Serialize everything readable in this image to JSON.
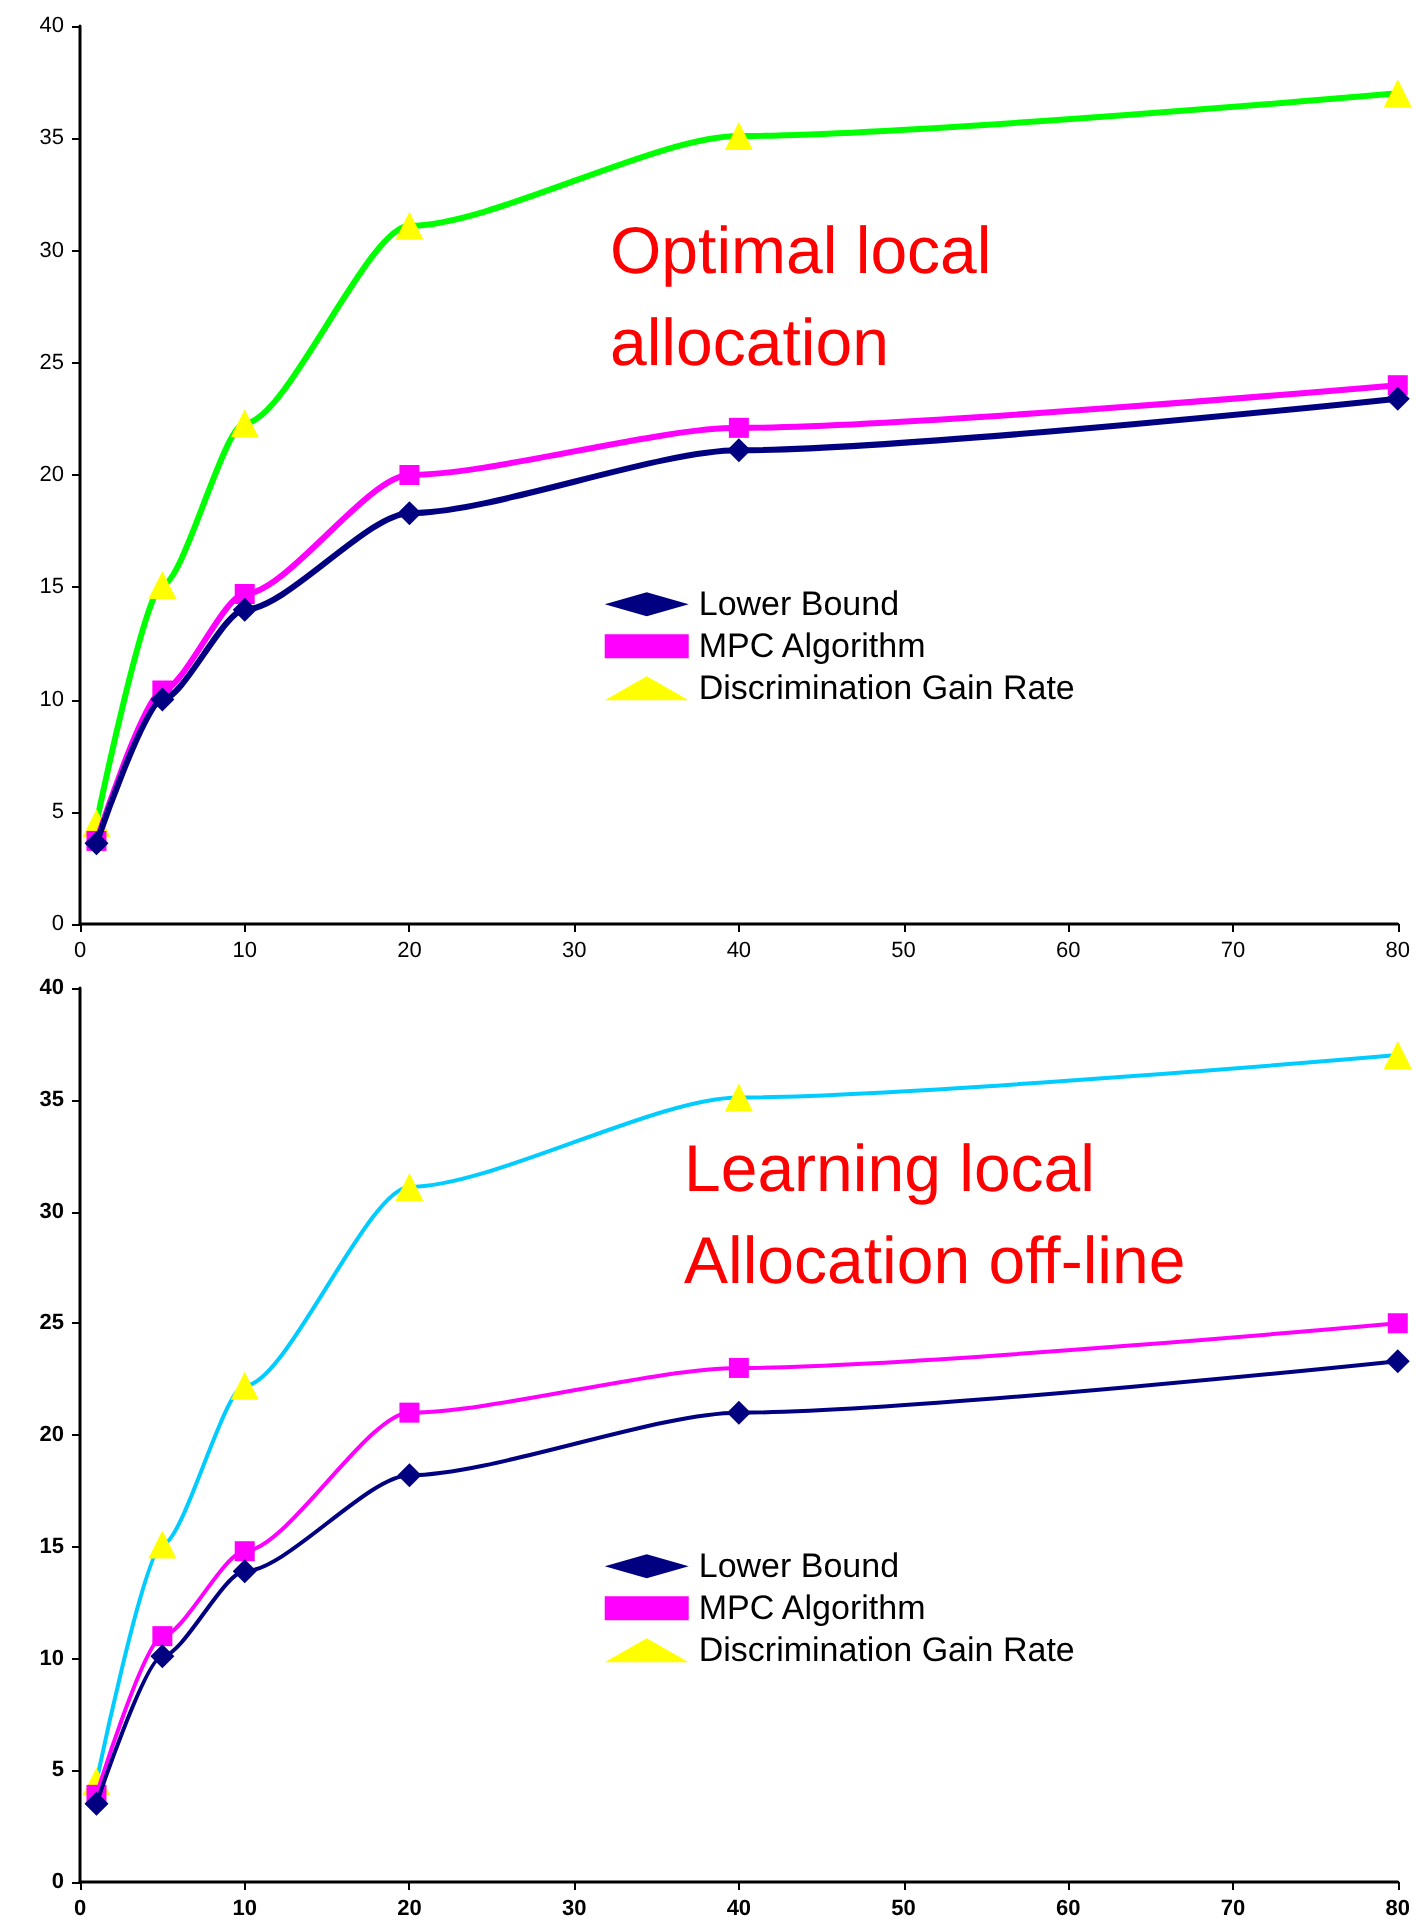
{
  "chart_data": [
    {
      "type": "line",
      "x": [
        1,
        5,
        10,
        20,
        40,
        80
      ],
      "xlim": [
        0,
        80
      ],
      "xticks": [
        0,
        10,
        20,
        30,
        40,
        50,
        60,
        70,
        80
      ],
      "ylim": [
        0,
        40
      ],
      "yticks": [
        0,
        5,
        10,
        15,
        20,
        25,
        30,
        35,
        40
      ],
      "grid": false,
      "legend": "center",
      "annotations": [
        "Optimal local allocation"
      ],
      "series": [
        {
          "name": "Lower Bound",
          "color": "#000080",
          "marker": "diamond",
          "values": [
            3.6,
            10.0,
            14.0,
            18.3,
            21.1,
            23.4
          ]
        },
        {
          "name": "MPC Algorithm",
          "color": "#ff00ff",
          "marker": "square",
          "values": [
            3.7,
            10.4,
            14.7,
            20.0,
            22.1,
            24.0
          ]
        },
        {
          "name": "Discrimination Gain Rate",
          "color": "#00ff00",
          "colors": [
            "#ffff00",
            "#ffff00",
            "#ffff00",
            "#ffff00",
            "#ffff00",
            "#ffff00"
          ],
          "marker": "triangle",
          "values": [
            4.5,
            15.1,
            22.3,
            31.1,
            35.1,
            37.0
          ]
        }
      ]
    },
    {
      "type": "line",
      "x": [
        1,
        5,
        10,
        20,
        40,
        80
      ],
      "xlim": [
        0,
        80
      ],
      "xticks": [
        0,
        10,
        20,
        30,
        40,
        50,
        60,
        70,
        80
      ],
      "ylim": [
        0,
        40
      ],
      "yticks": [
        0,
        5,
        10,
        15,
        20,
        25,
        30,
        35,
        40
      ],
      "grid": false,
      "legend": "center",
      "annotations": [
        "Learning local Allocation off-line"
      ],
      "series": [
        {
          "name": "Lower Bound",
          "color": "#000080",
          "marker": "diamond",
          "values": [
            3.5,
            10.1,
            13.9,
            18.2,
            21.0,
            23.3
          ]
        },
        {
          "name": "MPC Algorithm",
          "color": "#ff00ff",
          "marker": "square",
          "values": [
            3.9,
            11.0,
            14.8,
            21.0,
            23.0,
            25.0
          ]
        },
        {
          "name": "Discrimination Gain Rate",
          "color": "#00ccff",
          "colors": [
            "#ffff00",
            "#ffff00",
            "#ffff00",
            "#ffff00",
            "#ffff00",
            "#ffff00"
          ],
          "marker": "triangle",
          "values": [
            4.5,
            15.1,
            22.2,
            31.1,
            35.1,
            37.0
          ]
        }
      ]
    }
  ]
}
